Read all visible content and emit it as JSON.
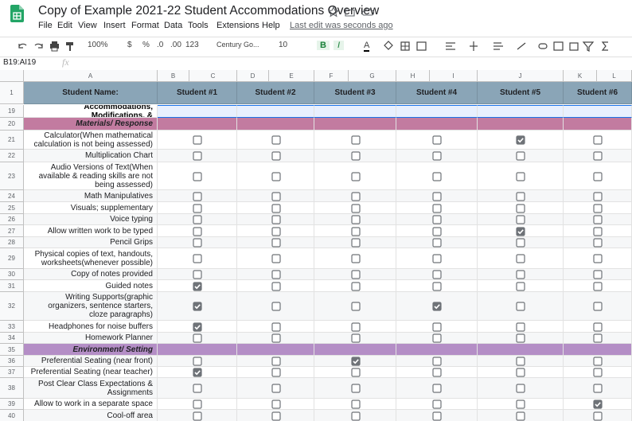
{
  "header": {
    "title": "Copy of Example 2021-22 Student Accommodations Overview",
    "last_edit": "Last edit was seconds ago"
  },
  "menu": [
    "File",
    "Edit",
    "View",
    "Insert",
    "Format",
    "Data",
    "Tools",
    "Extensions",
    "Help"
  ],
  "toolbar": {
    "zoom": "100%",
    "currency": "$",
    "percent": "%",
    "decrease_decimal": ".0",
    "increase_decimal": ".00",
    "more_formats": "123",
    "font": "Century Go...",
    "font_size": "10",
    "bold": "B",
    "italic": "I",
    "text_color": "A"
  },
  "formula_bar": {
    "name_box": "B19:AI19",
    "fx": "fx"
  },
  "columns": [
    "A",
    "B",
    "C",
    "D",
    "E",
    "F",
    "G",
    "H",
    "I",
    "J",
    "K",
    "L"
  ],
  "table": {
    "header_row": 1,
    "header_label": "Student Name:",
    "students": [
      "Student #1",
      "Student #2",
      "Student #3",
      "Student #4",
      "Student #5",
      "Student #6"
    ],
    "rows": [
      {
        "number": 19,
        "label": "Accommodations, Modifications, &",
        "kind": "group"
      },
      {
        "number": 20,
        "label": "Materials/ Response",
        "kind": "section",
        "color": "#c27ba0"
      },
      {
        "number": 21,
        "label": "Calculator(When mathematical calculation is not being assessed)",
        "checks": [
          false,
          false,
          false,
          false,
          true,
          false
        ]
      },
      {
        "number": 22,
        "label": "Multiplication Chart",
        "checks": [
          false,
          false,
          false,
          false,
          false,
          false
        ]
      },
      {
        "number": 23,
        "label": "Audio Versions of Text(When available & reading skills are not being assessed)",
        "checks": [
          false,
          false,
          false,
          false,
          false,
          false
        ]
      },
      {
        "number": 24,
        "label": "Math Manipulatives",
        "checks": [
          false,
          false,
          false,
          false,
          false,
          false
        ]
      },
      {
        "number": 25,
        "label": "Visuals; supplementary",
        "checks": [
          false,
          false,
          false,
          false,
          false,
          false
        ]
      },
      {
        "number": 26,
        "label": "Voice typing",
        "checks": [
          false,
          false,
          false,
          false,
          false,
          false
        ]
      },
      {
        "number": 27,
        "label": "Allow written work to be typed",
        "checks": [
          false,
          false,
          false,
          false,
          true,
          false
        ]
      },
      {
        "number": 28,
        "label": "Pencil Grips",
        "checks": [
          false,
          false,
          false,
          false,
          false,
          false
        ]
      },
      {
        "number": 29,
        "label": "Physical copies of text, handouts, worksheets(whenever possible)",
        "checks": [
          false,
          false,
          false,
          false,
          false,
          false
        ]
      },
      {
        "number": 30,
        "label": "Copy of notes provided",
        "checks": [
          false,
          false,
          false,
          false,
          false,
          false
        ]
      },
      {
        "number": 31,
        "label": "Guided notes",
        "checks": [
          true,
          false,
          false,
          false,
          false,
          false
        ]
      },
      {
        "number": 32,
        "label": "Writing Supports(graphic organizers, sentence starters, cloze paragraphs)",
        "checks": [
          true,
          false,
          false,
          true,
          false,
          false
        ]
      },
      {
        "number": 33,
        "label": "Headphones for noise buffers",
        "checks": [
          true,
          false,
          false,
          false,
          false,
          false
        ]
      },
      {
        "number": 34,
        "label": "Homework Planner",
        "checks": [
          false,
          false,
          false,
          false,
          false,
          false
        ]
      },
      {
        "number": 35,
        "label": "Environment/ Setting",
        "kind": "section",
        "color": "#b48ec6"
      },
      {
        "number": 36,
        "label": "Preferential Seating (near front)",
        "checks": [
          false,
          false,
          true,
          false,
          false,
          false
        ]
      },
      {
        "number": 37,
        "label": "Preferential Seating (near teacher)",
        "checks": [
          true,
          false,
          false,
          false,
          false,
          false
        ]
      },
      {
        "number": 38,
        "label": "Post Clear Class Expectations & Assignments",
        "checks": [
          false,
          false,
          false,
          false,
          false,
          false
        ]
      },
      {
        "number": 39,
        "label": "Allow to work in a separate space",
        "checks": [
          false,
          false,
          false,
          false,
          false,
          true
        ]
      },
      {
        "number": 40,
        "label": "Cool-off area",
        "checks": [
          false,
          false,
          false,
          false,
          false,
          false
        ]
      }
    ]
  }
}
